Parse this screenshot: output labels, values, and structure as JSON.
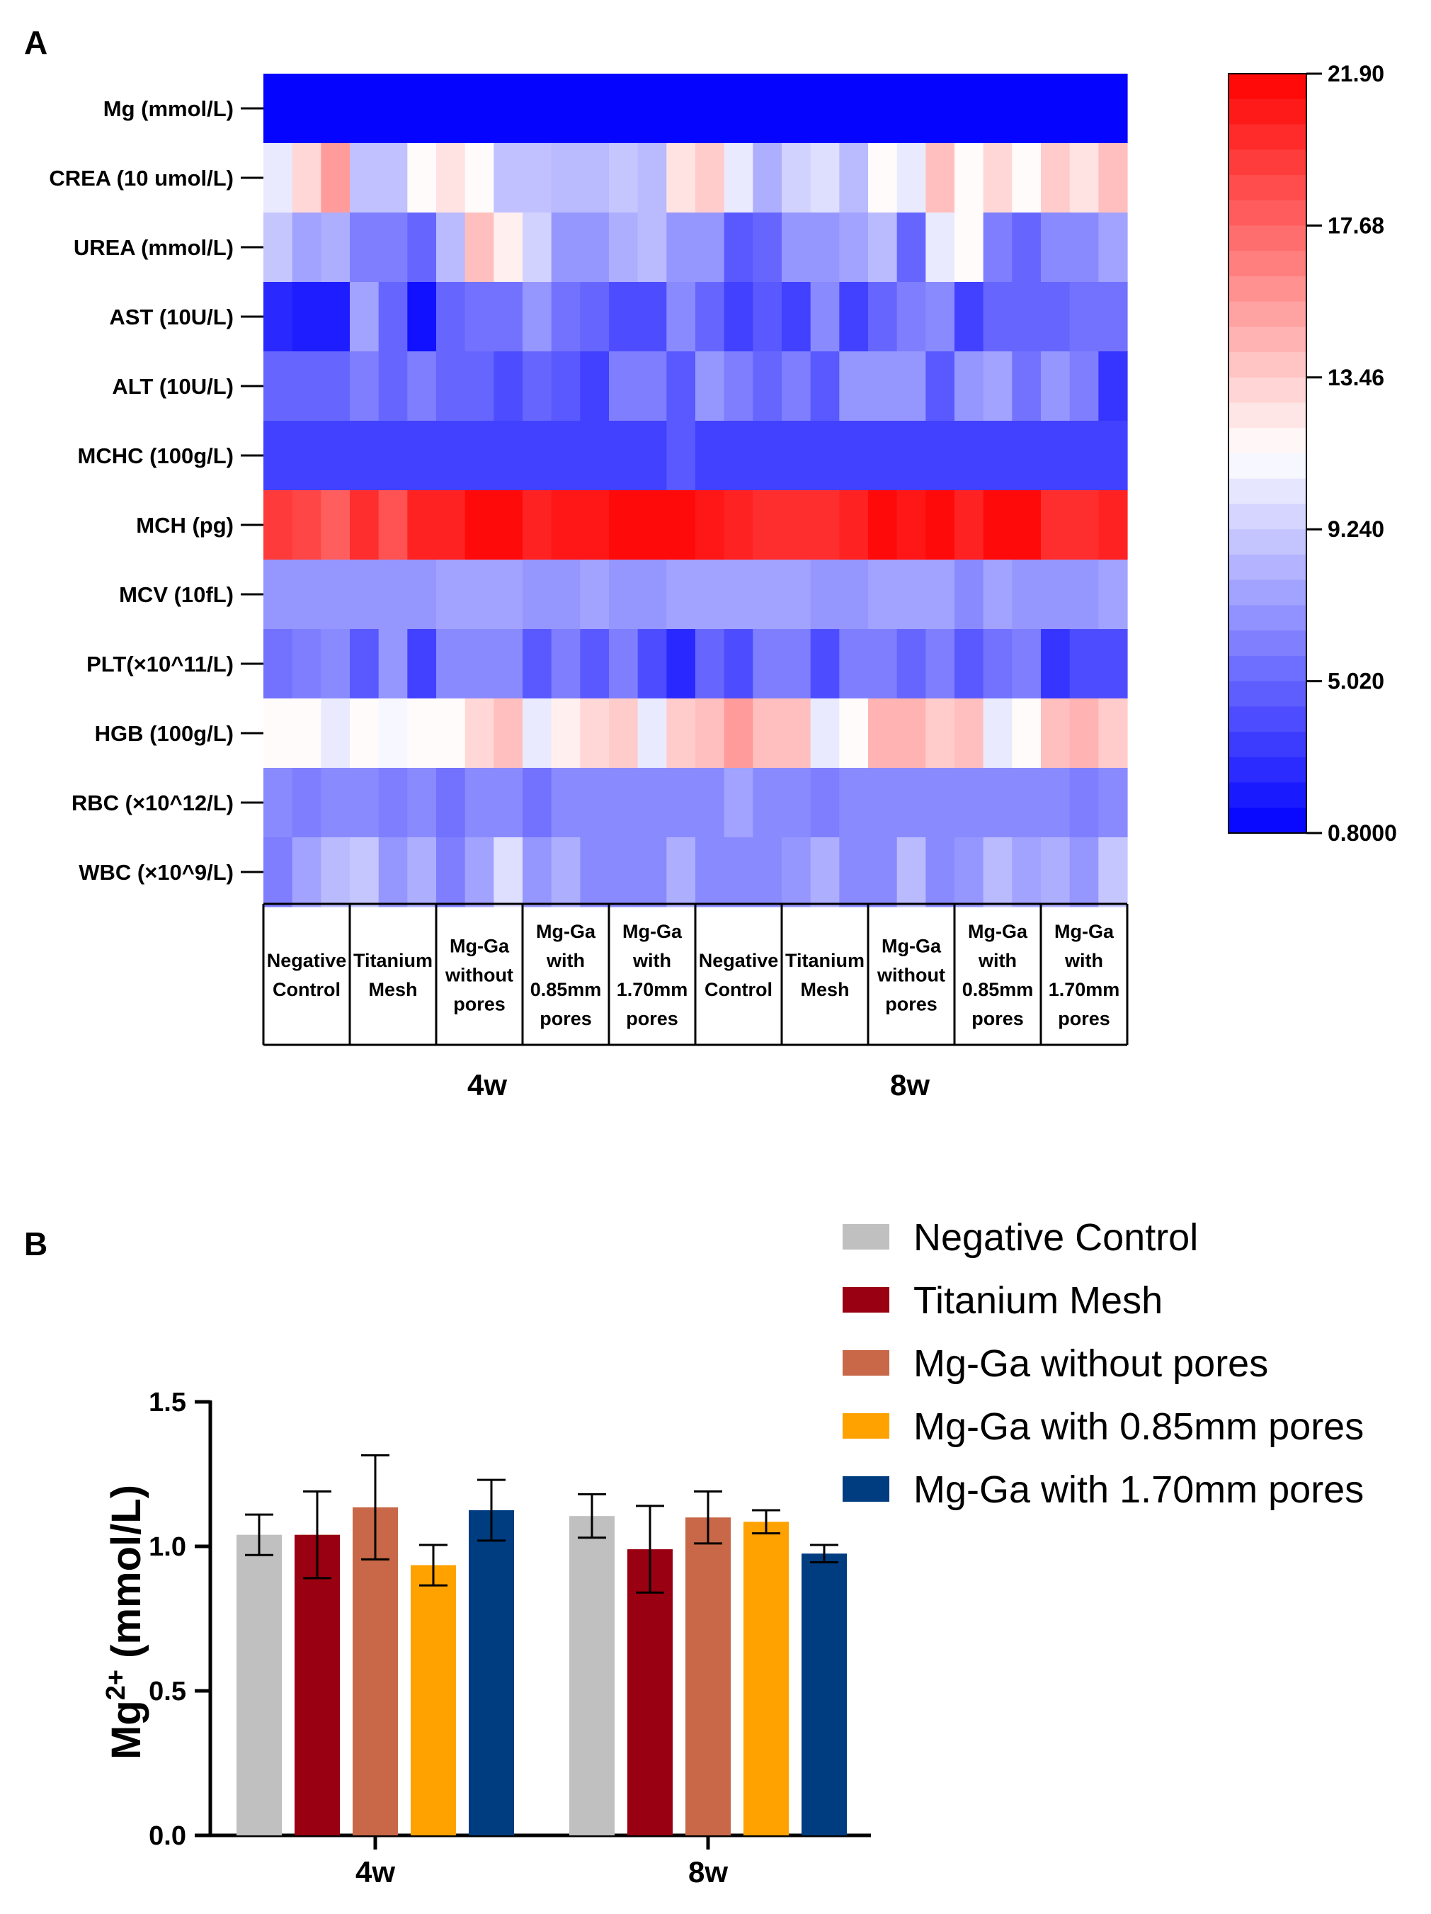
{
  "panel_a": {
    "label": "A",
    "chart_data": {
      "type": "heatmap",
      "rows": [
        "Mg (mmol/L)",
        "CREA (10 umol/L)",
        "UREA (mmol/L)",
        "AST (10U/L)",
        "ALT (10U/L)",
        "MCHC (100g/L)",
        "MCH (pg)",
        "MCV (10fL)",
        "PLT(×10^11/L)",
        "HGB (100g/L)",
        "RBC (×10^12/L)",
        "WBC (×10^9/L)"
      ],
      "time_points": [
        "4w",
        "8w"
      ],
      "groups": [
        {
          "time": "4w",
          "lines": [
            "Negative",
            "Control"
          ]
        },
        {
          "time": "4w",
          "lines": [
            "Titanium",
            "Mesh"
          ]
        },
        {
          "time": "4w",
          "lines": [
            "Mg-Ga",
            "without",
            "pores"
          ]
        },
        {
          "time": "4w",
          "lines": [
            "Mg-Ga",
            "with",
            "0.85mm",
            "pores"
          ]
        },
        {
          "time": "4w",
          "lines": [
            "Mg-Ga",
            "with",
            "1.70mm",
            "pores"
          ]
        },
        {
          "time": "8w",
          "lines": [
            "Negative",
            "Control"
          ]
        },
        {
          "time": "8w",
          "lines": [
            "Titanium",
            "Mesh"
          ]
        },
        {
          "time": "8w",
          "lines": [
            "Mg-Ga",
            "without",
            "pores"
          ]
        },
        {
          "time": "8w",
          "lines": [
            "Mg-Ga",
            "with",
            "0.85mm",
            "pores"
          ]
        },
        {
          "time": "8w",
          "lines": [
            "Mg-Ga",
            "with",
            "1.70mm",
            "pores"
          ]
        }
      ],
      "replicates_per_group": 3,
      "values": [
        [
          1.0,
          1.0,
          1.0,
          1.0,
          1.0,
          1.0,
          1.0,
          1.0,
          1.0,
          1.0,
          1.0,
          1.0,
          1.0,
          1.0,
          1.0,
          1.0,
          1.0,
          1.0,
          1.0,
          1.0,
          1.0,
          1.0,
          1.0,
          1.0,
          1.0,
          1.0,
          1.0,
          1.0,
          1.0,
          1.0
        ],
        [
          10.5,
          13.0,
          15.5,
          8.8,
          8.8,
          11.5,
          12.5,
          11.5,
          8.8,
          8.8,
          8.5,
          8.5,
          9.0,
          8.5,
          12.5,
          13.5,
          10.5,
          8.0,
          9.5,
          10.0,
          8.5,
          11.5,
          10.5,
          14.0,
          11.5,
          13.0,
          11.5,
          13.5,
          12.5,
          14.0
        ],
        [
          9.0,
          7.5,
          8.0,
          6.0,
          6.0,
          5.0,
          8.5,
          14.0,
          12.0,
          9.5,
          7.0,
          7.0,
          8.0,
          8.5,
          7.0,
          7.0,
          4.5,
          5.0,
          7.0,
          7.0,
          7.5,
          8.5,
          5.0,
          10.5,
          11.5,
          6.0,
          5.0,
          6.5,
          6.5,
          7.5
        ],
        [
          2.5,
          2.0,
          2.0,
          7.5,
          5.0,
          1.5,
          5.0,
          5.5,
          5.5,
          7.0,
          5.5,
          5.0,
          4.0,
          4.0,
          6.5,
          5.0,
          3.5,
          4.5,
          3.5,
          6.5,
          3.5,
          5.0,
          6.0,
          6.5,
          3.5,
          5.0,
          5.0,
          5.0,
          5.5,
          5.5
        ],
        [
          5.0,
          5.0,
          5.0,
          6.0,
          5.0,
          6.0,
          5.0,
          5.0,
          4.0,
          5.0,
          4.5,
          3.5,
          6.0,
          6.0,
          4.5,
          7.0,
          6.0,
          5.0,
          6.0,
          4.5,
          7.0,
          7.0,
          7.0,
          4.5,
          7.0,
          7.5,
          5.5,
          7.0,
          6.0,
          3.0
        ],
        [
          3.5,
          3.5,
          3.5,
          3.5,
          3.5,
          3.5,
          3.5,
          3.5,
          3.5,
          3.5,
          3.5,
          3.5,
          3.5,
          3.5,
          4.5,
          3.5,
          3.5,
          3.5,
          3.5,
          3.5,
          3.5,
          3.5,
          3.5,
          3.5,
          3.5,
          3.5,
          3.5,
          3.5,
          3.5,
          3.5
        ],
        [
          19.5,
          19.0,
          18.0,
          20.0,
          18.5,
          20.5,
          20.5,
          21.5,
          21.5,
          20.5,
          21.0,
          21.0,
          21.5,
          21.5,
          21.5,
          21.0,
          20.5,
          20.0,
          20.0,
          20.0,
          20.5,
          21.5,
          21.0,
          21.5,
          20.5,
          21.5,
          21.5,
          20.0,
          20.0,
          20.5
        ],
        [
          7.0,
          7.0,
          7.0,
          7.0,
          7.0,
          7.0,
          7.5,
          7.5,
          7.5,
          7.0,
          7.0,
          7.5,
          7.0,
          7.0,
          7.5,
          7.5,
          7.5,
          7.5,
          7.5,
          7.0,
          7.0,
          7.5,
          7.5,
          7.5,
          6.5,
          7.5,
          7.0,
          7.0,
          7.0,
          7.5
        ],
        [
          5.5,
          6.0,
          6.5,
          4.5,
          7.0,
          3.5,
          6.5,
          6.5,
          6.5,
          4.5,
          6.0,
          4.5,
          6.0,
          4.0,
          2.5,
          5.0,
          4.0,
          6.0,
          6.0,
          4.0,
          6.0,
          6.0,
          5.0,
          6.0,
          4.5,
          5.5,
          6.0,
          3.0,
          4.0,
          4.0
        ],
        [
          11.5,
          11.5,
          10.5,
          11.5,
          11.0,
          11.5,
          11.5,
          13.0,
          14.0,
          10.5,
          12.0,
          13.0,
          13.5,
          10.5,
          13.5,
          14.0,
          15.5,
          14.0,
          14.0,
          10.5,
          11.5,
          14.5,
          14.5,
          13.5,
          14.0,
          10.5,
          11.5,
          14.0,
          14.5,
          13.5
        ],
        [
          6.5,
          6.0,
          6.5,
          6.5,
          6.0,
          6.5,
          5.5,
          6.5,
          6.5,
          5.5,
          6.5,
          6.5,
          6.5,
          6.5,
          6.5,
          6.5,
          7.5,
          6.5,
          6.5,
          6.0,
          6.5,
          6.5,
          6.5,
          6.5,
          6.5,
          6.5,
          6.5,
          6.5,
          6.0,
          6.5
        ],
        [
          6.0,
          7.5,
          8.5,
          9.0,
          7.0,
          8.0,
          6.0,
          7.5,
          10.0,
          7.0,
          8.0,
          6.5,
          6.5,
          6.5,
          8.0,
          6.5,
          6.5,
          6.5,
          7.0,
          8.0,
          6.5,
          6.5,
          8.5,
          6.5,
          7.0,
          8.5,
          7.5,
          8.0,
          7.0,
          9.0
        ]
      ],
      "colorbar": {
        "min": 0.8,
        "max": 21.9,
        "low_color": "#0000FF",
        "mid_color": "#FFFFFF",
        "high_color": "#FF0000",
        "tick_values": [
          21.9,
          17.68,
          13.46,
          9.24,
          5.02,
          0.8
        ],
        "tick_labels": [
          "21.90",
          "17.68",
          "13.46",
          "9.240",
          "5.020",
          "0.8000"
        ]
      }
    }
  },
  "panel_b": {
    "label": "B",
    "chart_data": {
      "type": "bar",
      "categories": [
        "4w",
        "8w"
      ],
      "series": [
        {
          "name": "Negative Control",
          "color": "#C0C0C0",
          "values": [
            1.04,
            1.105
          ],
          "errors": [
            0.07,
            0.075
          ]
        },
        {
          "name": "Titanium Mesh",
          "color": "#990011",
          "values": [
            1.04,
            0.99
          ],
          "errors": [
            0.15,
            0.15
          ]
        },
        {
          "name": "Mg-Ga without pores",
          "color": "#C86848",
          "values": [
            1.135,
            1.1
          ],
          "errors": [
            0.18,
            0.09
          ]
        },
        {
          "name": "Mg-Ga with 0.85mm pores",
          "color": "#FFA200",
          "values": [
            0.935,
            1.085
          ],
          "errors": [
            0.07,
            0.04
          ]
        },
        {
          "name": "Mg-Ga with 1.70mm pores",
          "color": "#003C80",
          "values": [
            1.125,
            0.975
          ],
          "errors": [
            0.105,
            0.03
          ]
        }
      ],
      "ylabel_main": "Mg",
      "ylabel_sup": "2+",
      "ylabel_unit": " (mmol/L)",
      "ylim": [
        0.0,
        1.5
      ],
      "yticks": [
        0.0,
        0.5,
        1.0,
        1.5
      ],
      "ytick_labels": [
        "0.0",
        "0.5",
        "1.0",
        "1.5"
      ],
      "legend_position": "top-right"
    }
  }
}
